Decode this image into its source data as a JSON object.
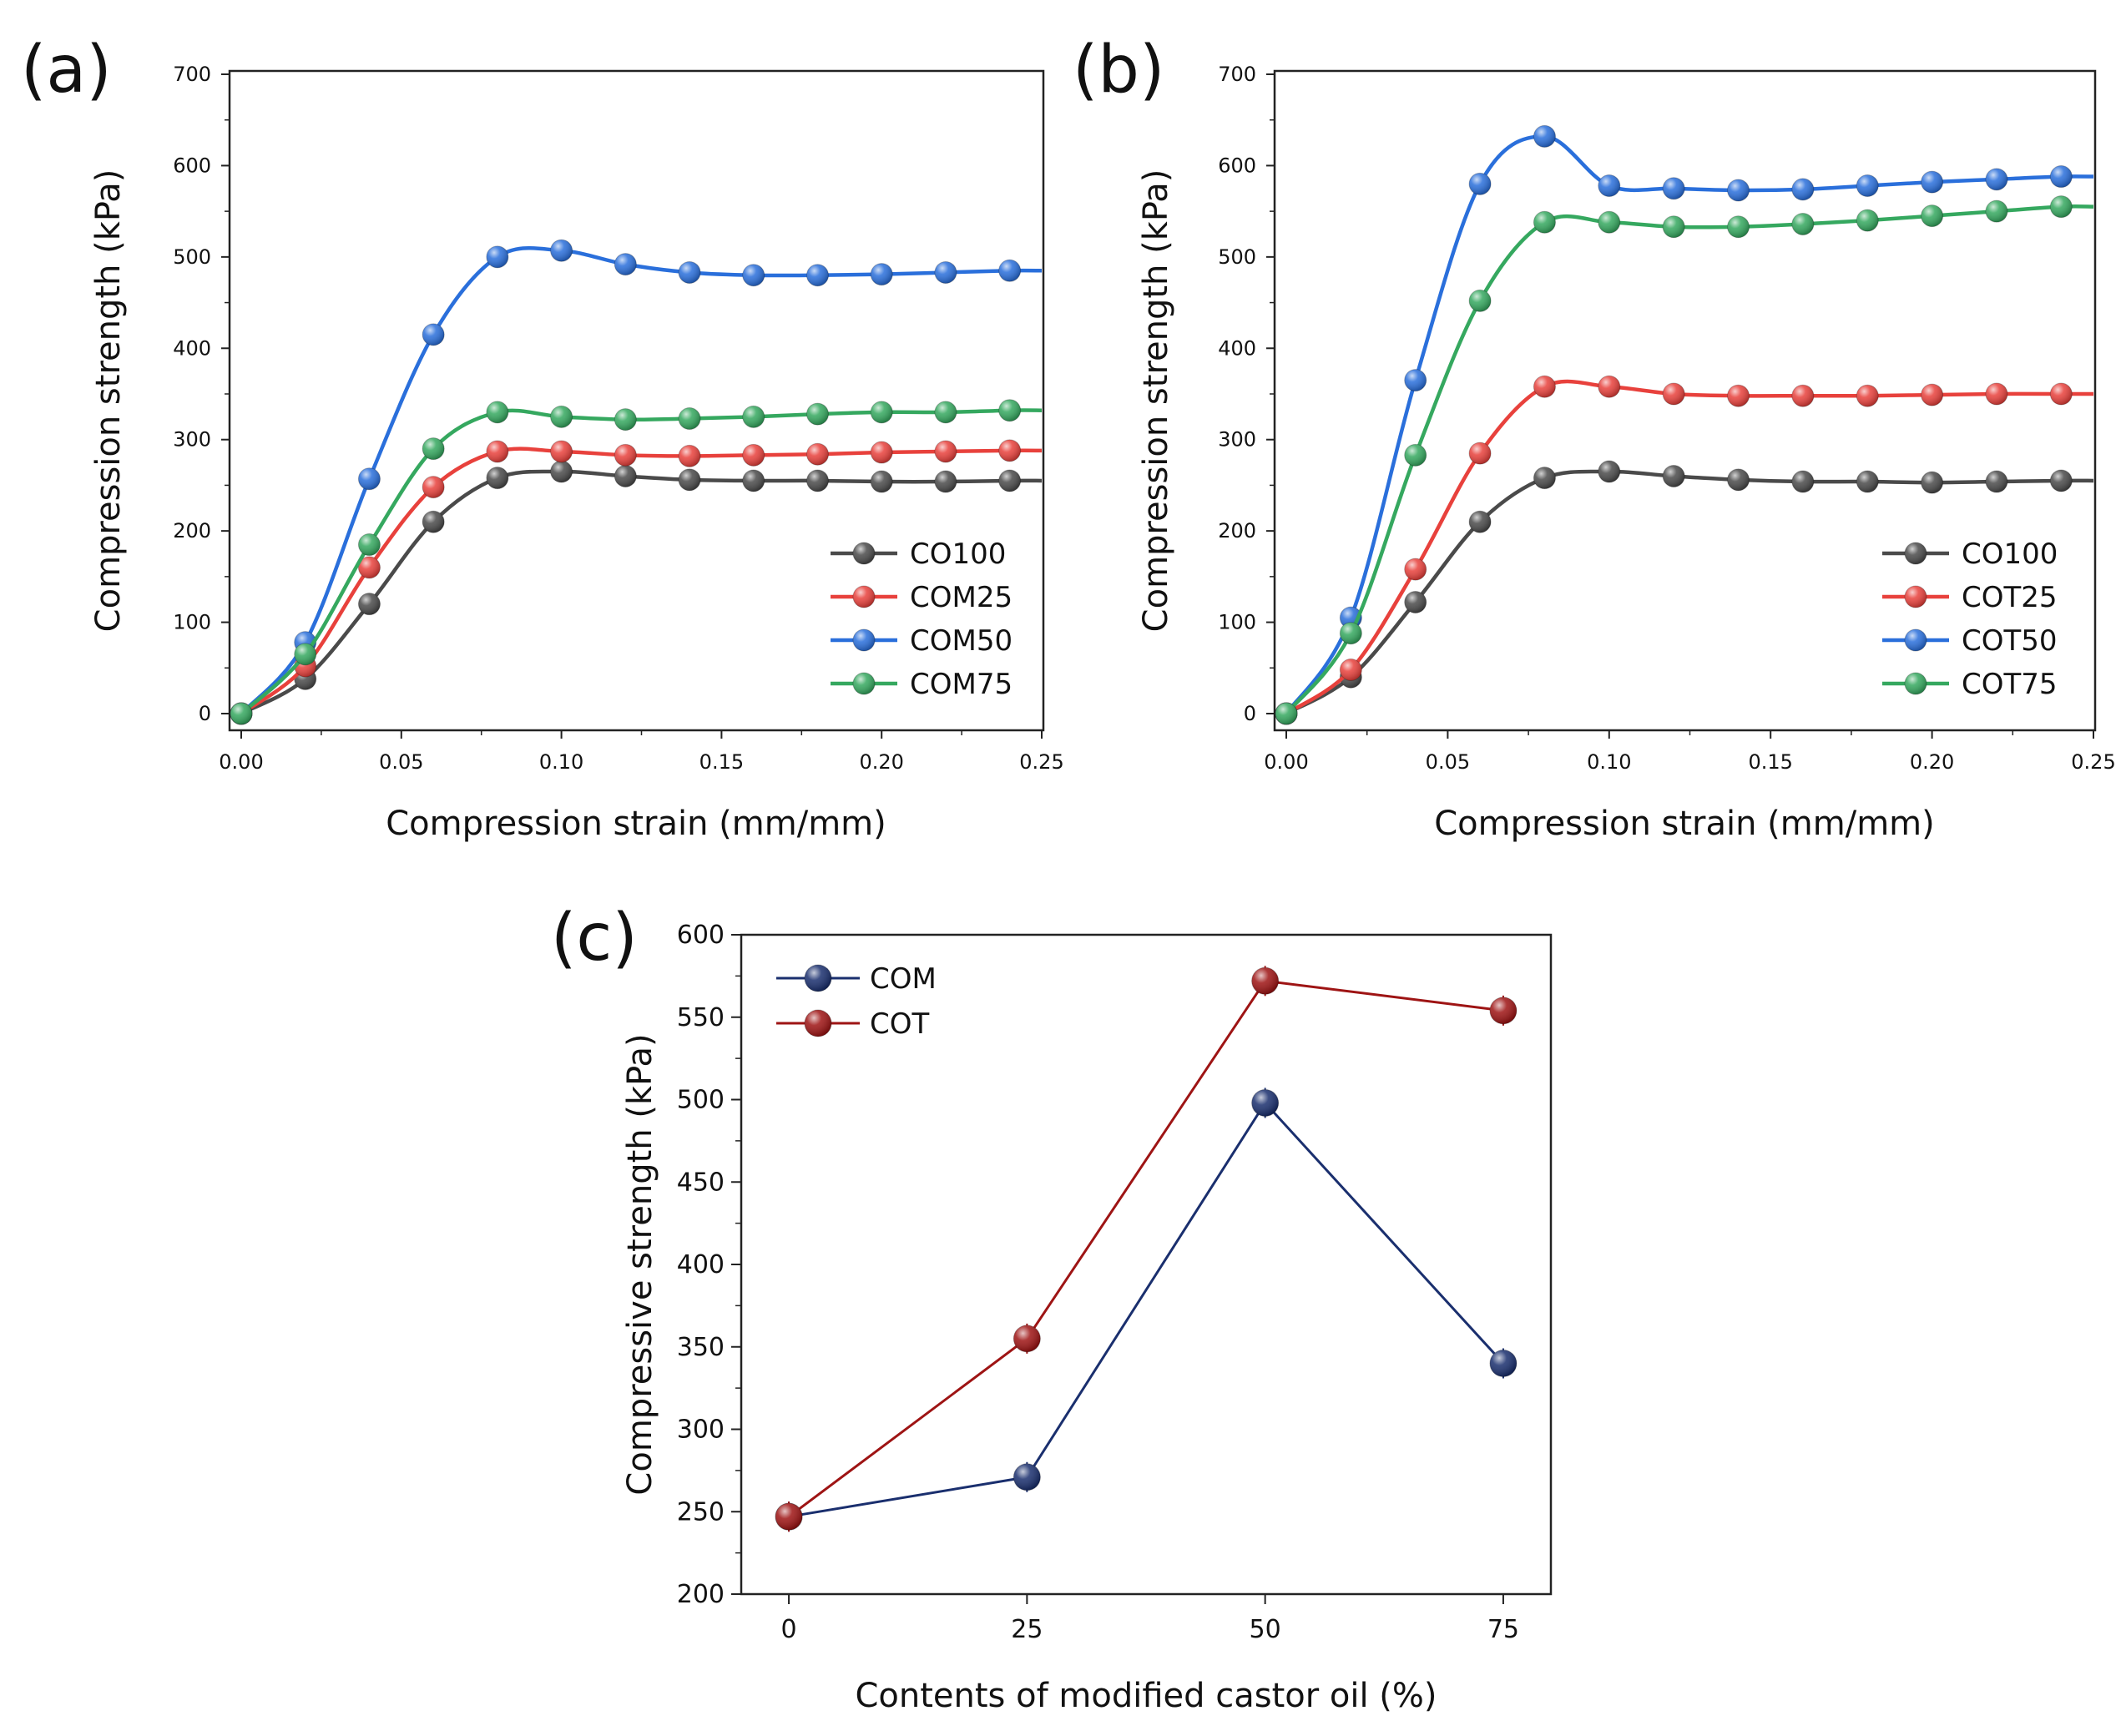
{
  "chart_data": [
    {
      "type": "line",
      "panel_label": "(a)",
      "xlabel": "Compression strain (mm/mm)",
      "ylabel": "Compression strength (kPa)",
      "xlim": [
        0,
        0.25
      ],
      "ylim": [
        0,
        700
      ],
      "xticks": [
        "0.00",
        "0.05",
        "0.10",
        "0.15",
        "0.20",
        "0.25"
      ],
      "yticks": [
        "0",
        "100",
        "200",
        "300",
        "400",
        "500",
        "600",
        "700"
      ],
      "legend_position": "bottom-right",
      "x": [
        0,
        0.02,
        0.04,
        0.06,
        0.08,
        0.1,
        0.12,
        0.14,
        0.16,
        0.18,
        0.2,
        0.22,
        0.24
      ],
      "series": [
        {
          "name": "CO100",
          "color": "#4a4a4a",
          "values": [
            0,
            38,
            120,
            210,
            258,
            265,
            260,
            256,
            255,
            255,
            254,
            254,
            255
          ]
        },
        {
          "name": "COM25",
          "color": "#e8413c",
          "values": [
            0,
            52,
            160,
            248,
            287,
            287,
            283,
            282,
            283,
            284,
            286,
            287,
            288
          ]
        },
        {
          "name": "COM50",
          "color": "#2a6fdb",
          "values": [
            0,
            78,
            257,
            415,
            500,
            507,
            492,
            483,
            480,
            480,
            481,
            483,
            485
          ]
        },
        {
          "name": "COM75",
          "color": "#35a85f",
          "values": [
            0,
            65,
            185,
            290,
            330,
            325,
            322,
            323,
            325,
            328,
            330,
            330,
            332
          ]
        }
      ]
    },
    {
      "type": "line",
      "panel_label": "(b)",
      "xlabel": "Compression strain (mm/mm)",
      "ylabel": "Compression strength (kPa)",
      "xlim": [
        0,
        0.25
      ],
      "ylim": [
        0,
        700
      ],
      "xticks": [
        "0.00",
        "0.05",
        "0.10",
        "0.15",
        "0.20",
        "0.25"
      ],
      "yticks": [
        "0",
        "100",
        "200",
        "300",
        "400",
        "500",
        "600",
        "700"
      ],
      "legend_position": "bottom-right",
      "x": [
        0,
        0.02,
        0.04,
        0.06,
        0.08,
        0.1,
        0.12,
        0.14,
        0.16,
        0.18,
        0.2,
        0.22,
        0.24
      ],
      "series": [
        {
          "name": "CO100",
          "color": "#4a4a4a",
          "values": [
            0,
            40,
            122,
            210,
            258,
            265,
            260,
            256,
            254,
            254,
            253,
            254,
            255
          ]
        },
        {
          "name": "COT25",
          "color": "#e8413c",
          "values": [
            0,
            48,
            158,
            285,
            358,
            358,
            350,
            348,
            348,
            348,
            349,
            350,
            350
          ]
        },
        {
          "name": "COT50",
          "color": "#2a6fdb",
          "values": [
            0,
            105,
            365,
            580,
            632,
            578,
            575,
            573,
            574,
            578,
            582,
            585,
            588
          ]
        },
        {
          "name": "COT75",
          "color": "#35a85f",
          "values": [
            0,
            88,
            283,
            452,
            538,
            538,
            533,
            533,
            536,
            540,
            545,
            550,
            555
          ]
        }
      ]
    },
    {
      "type": "line",
      "panel_label": "(c)",
      "xlabel": "Contents of modified castor oil (%)",
      "ylabel": "Compressive strength (kPa)",
      "categories": [
        "0",
        "25",
        "50",
        "75"
      ],
      "x": [
        0,
        25,
        50,
        75
      ],
      "xlim": [
        -5,
        80
      ],
      "ylim": [
        200,
        600
      ],
      "yticks": [
        "200",
        "250",
        "300",
        "350",
        "400",
        "450",
        "500",
        "550",
        "600"
      ],
      "legend_position": "top-left",
      "series": [
        {
          "name": "COM",
          "color": "#1a2f6e",
          "values": [
            247,
            271,
            498,
            340
          ]
        },
        {
          "name": "COT",
          "color": "#9e1414",
          "values": [
            247,
            355,
            572,
            554
          ]
        }
      ]
    }
  ]
}
